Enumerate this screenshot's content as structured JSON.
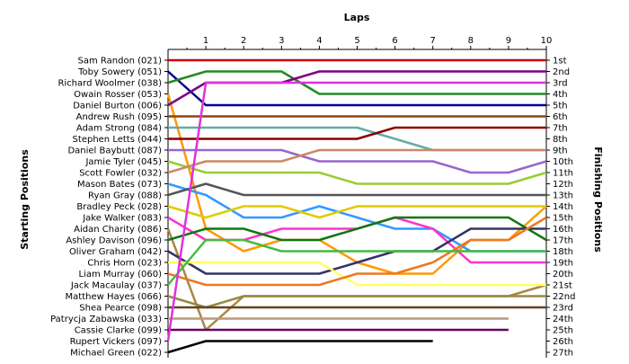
{
  "chart_data": {
    "type": "line",
    "title": "",
    "xlabel": "Laps",
    "ylabel_left": "Starting Positions",
    "ylabel_right": "Finishing Positions",
    "x_ticks": [
      1,
      2,
      3,
      4,
      5,
      6,
      7,
      8,
      9,
      10
    ],
    "xlim": [
      0,
      10
    ],
    "ylim": [
      1,
      27
    ],
    "y_inverted": true,
    "grid": false,
    "finishing_labels": [
      "1st",
      "2nd",
      "3rd",
      "4th",
      "5th",
      "6th",
      "7th",
      "8th",
      "9th",
      "10th",
      "11th",
      "12th",
      "13th",
      "14th",
      "15th",
      "16th",
      "17th",
      "18th",
      "19th",
      "20th",
      "21st",
      "22nd",
      "23rd",
      "24th",
      "25th",
      "26th",
      "27th"
    ],
    "series": [
      {
        "name": "Sam Randon (021)",
        "color": "#cc0000",
        "values": [
          1,
          1,
          1,
          1,
          1,
          1,
          1,
          1,
          1,
          1,
          1
        ]
      },
      {
        "name": "Toby Sowery (051)",
        "color": "#00008b",
        "values": [
          2,
          5,
          5,
          5,
          5,
          5,
          5,
          5,
          5,
          5,
          5
        ]
      },
      {
        "name": "Richard Woolmer (038)",
        "color": "#228b22",
        "values": [
          3,
          2,
          2,
          2,
          4,
          4,
          4,
          4,
          4,
          4,
          4
        ]
      },
      {
        "name": "Owain Rosser (053)",
        "color": "#ff9900",
        "values": [
          4,
          16,
          18,
          17,
          17,
          19,
          20,
          20,
          17,
          17,
          14
        ]
      },
      {
        "name": "Daniel Burton (006)",
        "color": "#800080",
        "values": [
          5,
          3,
          3,
          3,
          2,
          2,
          2,
          2,
          2,
          2,
          2
        ]
      },
      {
        "name": "Andrew Rush (095)",
        "color": "#8b4513",
        "values": [
          6,
          6,
          6,
          6,
          6,
          6,
          6,
          6,
          6,
          6,
          6
        ]
      },
      {
        "name": "Adam Strong (084)",
        "color": "#66aaaa",
        "values": [
          7,
          7,
          7,
          7,
          7,
          7,
          8,
          9,
          9,
          9,
          9
        ]
      },
      {
        "name": "Stephen Letts (044)",
        "color": "#8b0000",
        "values": [
          8,
          8,
          8,
          8,
          8,
          8,
          7,
          7,
          7,
          7,
          7
        ]
      },
      {
        "name": "Daniel Baybutt (087)",
        "color": "#9966cc",
        "values": [
          9,
          9,
          9,
          9,
          10,
          10,
          10,
          10,
          11,
          11,
          10
        ]
      },
      {
        "name": "Jamie Tyler (045)",
        "color": "#99cc33",
        "values": [
          10,
          11,
          11,
          11,
          11,
          12,
          12,
          12,
          12,
          12,
          11
        ]
      },
      {
        "name": "Scott Fowler (032)",
        "color": "#cc8866",
        "values": [
          11,
          10,
          10,
          10,
          9,
          9,
          9,
          9,
          9,
          9,
          9
        ]
      },
      {
        "name": "Mason Bates (073)",
        "color": "#3399ff",
        "values": [
          12,
          13,
          15,
          15,
          14,
          15,
          16,
          16,
          18,
          18,
          18
        ]
      },
      {
        "name": "Ryan Gray (088)",
        "color": "#555555",
        "values": [
          13,
          12,
          13,
          13,
          13,
          13,
          13,
          13,
          13,
          13,
          13
        ]
      },
      {
        "name": "Bradley Peck (028)",
        "color": "#ddcc00",
        "values": [
          14,
          15,
          14,
          14,
          15,
          14,
          14,
          14,
          14,
          14,
          14
        ]
      },
      {
        "name": "Jake Walker (083)",
        "color": "#ff33cc",
        "values": [
          15,
          17,
          17,
          16,
          16,
          16,
          15,
          16,
          19,
          19,
          19
        ]
      },
      {
        "name": "Aidan Charity (086)",
        "color": "#aa8844",
        "values": [
          16,
          25,
          22,
          22,
          22,
          22,
          22,
          22,
          22,
          22,
          21
        ]
      },
      {
        "name": "Ashley Davison (096)",
        "color": "#117711",
        "values": [
          17,
          16,
          16,
          17,
          17,
          16,
          15,
          15,
          15,
          15,
          17
        ]
      },
      {
        "name": "Oliver Graham (042)",
        "color": "#333366",
        "values": [
          18,
          20,
          20,
          20,
          20,
          19,
          18,
          18,
          16,
          16,
          16
        ]
      },
      {
        "name": "Chris Horn (023)",
        "color": "#ffff66",
        "values": [
          19,
          19,
          19,
          19,
          19,
          21,
          21,
          21,
          21,
          21,
          21
        ]
      },
      {
        "name": "Liam Murray (060)",
        "color": "#ee7722",
        "values": [
          20,
          21,
          21,
          21,
          21,
          20,
          20,
          19,
          17,
          17,
          15
        ]
      },
      {
        "name": "Jack Macaulay (037)",
        "color": "#44bb44",
        "values": [
          21,
          17,
          17,
          18,
          18,
          18,
          18,
          18,
          18,
          18,
          18
        ]
      },
      {
        "name": "Matthew Hayes (066)",
        "color": "#998844",
        "values": [
          22,
          23,
          22,
          22,
          22,
          22,
          22,
          22,
          22,
          22,
          22
        ]
      },
      {
        "name": "Shea Pearce (098)",
        "color": "#664422",
        "values": [
          23,
          23,
          23,
          23,
          23,
          23,
          23,
          23,
          23,
          23,
          23
        ]
      },
      {
        "name": "Patrycja Zabawska (033)",
        "color": "#bb9977",
        "values": [
          24,
          24,
          24,
          24,
          24,
          24,
          24,
          24,
          24,
          24
        ]
      },
      {
        "name": "Cassie Clarke (099)",
        "color": "#660066",
        "values": [
          25,
          25,
          25,
          25,
          25,
          25,
          25,
          25,
          25,
          25
        ]
      },
      {
        "name": "Rupert Vickers (097)",
        "color": "#dd33dd",
        "values": [
          26,
          3,
          3,
          3,
          3,
          3,
          3,
          3,
          3,
          3,
          3
        ]
      },
      {
        "name": "Michael Green (022)",
        "color": "#000000",
        "values": [
          27,
          26,
          26,
          26,
          26,
          26,
          26,
          26
        ]
      }
    ]
  }
}
